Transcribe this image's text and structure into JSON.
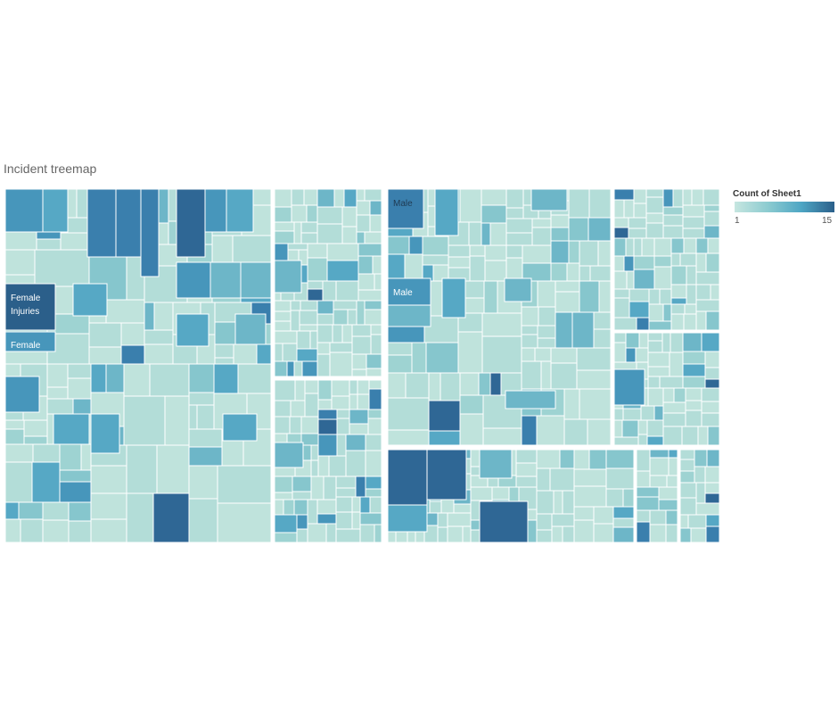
{
  "chart_data": {
    "type": "treemap",
    "title": "Incident treemap",
    "color_legend": {
      "title": "Count of Sheet1",
      "min": "1",
      "max": "15",
      "colors": [
        "#c6e6e0",
        "#8ccbd0",
        "#4ea6c4",
        "#2b5f8a"
      ]
    },
    "labels": [
      {
        "text": "Female Injuries",
        "lines": [
          "Female",
          "Injuries"
        ],
        "count": 15
      },
      {
        "text": "Female",
        "count": 8
      },
      {
        "text": "Male",
        "count": 11
      },
      {
        "text": "Male",
        "count": 9
      }
    ],
    "groups": [
      "Female",
      "Male"
    ]
  }
}
